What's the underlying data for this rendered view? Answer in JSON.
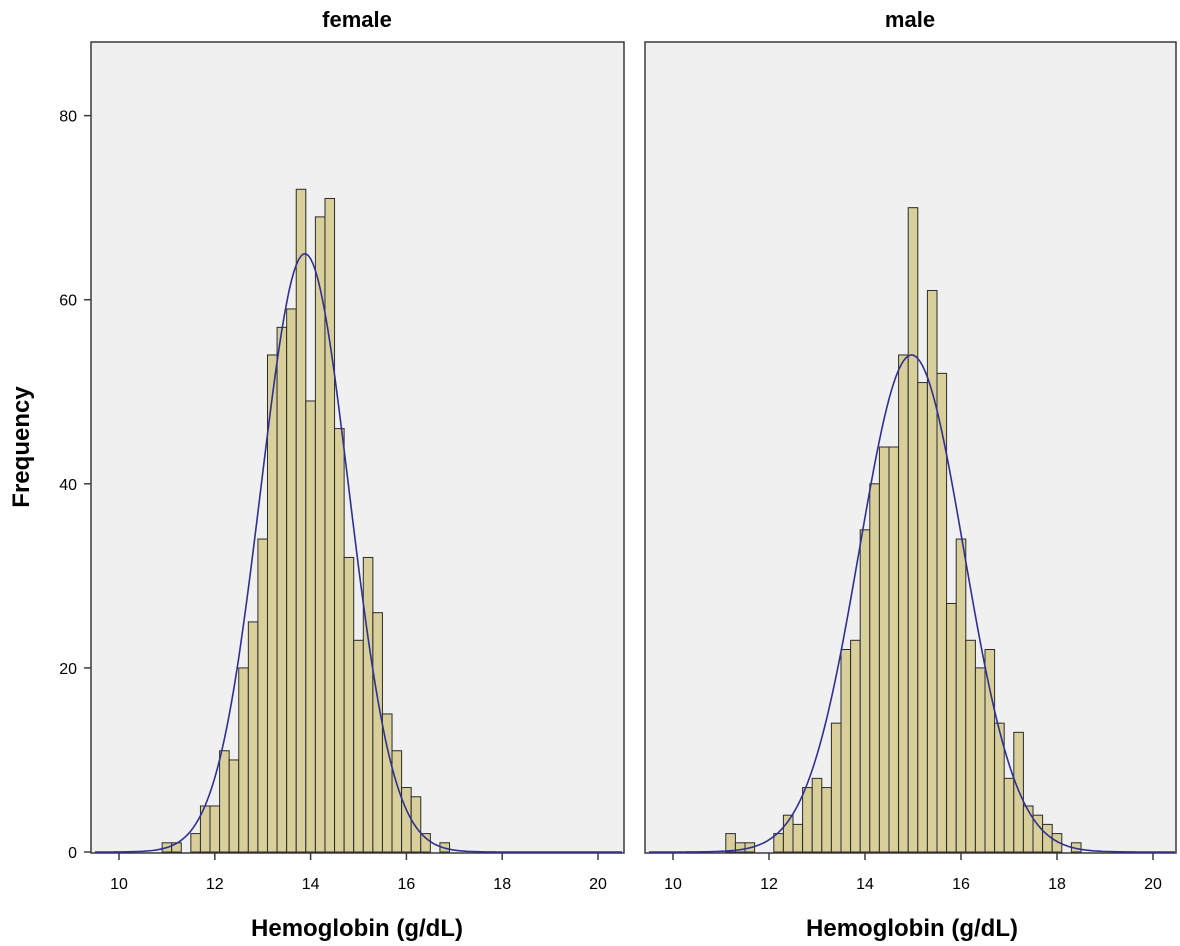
{
  "chart_data": {
    "type": "histogram",
    "ylabel": "Frequency",
    "xlabel": "Hemoglobin (g/dL)",
    "bin_width": 0.2,
    "xlim": [
      9.5,
      20.5
    ],
    "ylim": [
      0,
      88
    ],
    "x_ticks": [
      10,
      12,
      14,
      16,
      18,
      20
    ],
    "y_ticks": [
      0,
      20,
      40,
      60,
      80
    ],
    "grid": false,
    "colors": {
      "bar_fill": "#d8cf9a",
      "bar_stroke": "#2b2b2b",
      "curve": "#2e3192",
      "plot_background": "#f0f0f0",
      "frame": "#3a3a3a"
    },
    "panels": [
      {
        "title": "female",
        "bin_start": 10.9,
        "counts": [
          1,
          1,
          0,
          2,
          5,
          5,
          11,
          10,
          20,
          25,
          34,
          54,
          57,
          59,
          72,
          49,
          69,
          71,
          46,
          32,
          23,
          32,
          26,
          15,
          11,
          7,
          6,
          2,
          0,
          1
        ],
        "normal_curve": {
          "mean": 13.88,
          "peak": 65
        }
      },
      {
        "title": "male",
        "bin_start": 11.1,
        "counts": [
          2,
          1,
          1,
          0,
          0,
          2,
          4,
          3,
          7,
          8,
          7,
          14,
          22,
          23,
          35,
          40,
          44,
          44,
          54,
          70,
          51,
          61,
          52,
          27,
          34,
          23,
          20,
          22,
          14,
          8,
          13,
          5,
          4,
          3,
          2,
          0,
          1
        ],
        "normal_curve": {
          "mean": 14.97,
          "peak": 54
        }
      }
    ]
  }
}
